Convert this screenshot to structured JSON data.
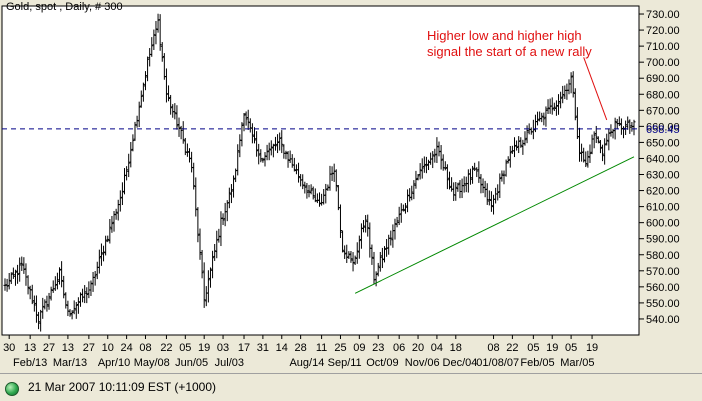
{
  "status": {
    "datetime": "21 Mar 2007 10:11:09  EST (+1000)",
    "led_color": "#2fa84f"
  },
  "chart_data": {
    "type": "ohlc",
    "title": "Gold, spot , Daily, # 300",
    "annotation": {
      "lines": [
        "Higher low and higher high",
        "signal the start of a new rally"
      ],
      "color": "#e01010"
    },
    "ylim": [
      530,
      735
    ],
    "yticks": [
      540,
      550,
      560,
      570,
      580,
      590,
      600,
      610,
      620,
      630,
      640,
      650,
      660,
      670,
      680,
      690,
      700,
      710,
      720,
      730
    ],
    "ytick_labels": [
      "540.00",
      "550.00",
      "560.00",
      "570.00",
      "580.00",
      "590.00",
      "600.00",
      "610.00",
      "620.00",
      "630.00",
      "640.00",
      "650.00",
      "660.00",
      "670.00",
      "680.00",
      "690.00",
      "700.00",
      "710.00",
      "720.00",
      "730.00"
    ],
    "xlim": [
      0,
      300
    ],
    "xticks_top": [
      {
        "x": 2,
        "label": "30"
      },
      {
        "x": 12,
        "label": "13"
      },
      {
        "x": 21,
        "label": "27"
      },
      {
        "x": 30,
        "label": "13"
      },
      {
        "x": 40,
        "label": "27"
      },
      {
        "x": 49,
        "label": "10"
      },
      {
        "x": 58,
        "label": "24"
      },
      {
        "x": 67,
        "label": "08"
      },
      {
        "x": 77,
        "label": "22"
      },
      {
        "x": 86,
        "label": "05"
      },
      {
        "x": 95,
        "label": "19"
      },
      {
        "x": 104,
        "label": "03"
      },
      {
        "x": 114,
        "label": "17"
      },
      {
        "x": 123,
        "label": "31"
      },
      {
        "x": 132,
        "label": "14"
      },
      {
        "x": 141,
        "label": "28"
      },
      {
        "x": 151,
        "label": "11"
      },
      {
        "x": 160,
        "label": "25"
      },
      {
        "x": 169,
        "label": "09"
      },
      {
        "x": 178,
        "label": "23"
      },
      {
        "x": 188,
        "label": "06"
      },
      {
        "x": 197,
        "label": "20"
      },
      {
        "x": 206,
        "label": "04"
      },
      {
        "x": 215,
        "label": "18"
      },
      {
        "x": 233,
        "label": "08"
      },
      {
        "x": 242,
        "label": "22"
      },
      {
        "x": 252,
        "label": "05"
      },
      {
        "x": 261,
        "label": "19"
      },
      {
        "x": 270,
        "label": "05"
      },
      {
        "x": 280,
        "label": "19"
      }
    ],
    "xticks_bottom": [
      {
        "x": 12,
        "label": "Feb/13"
      },
      {
        "x": 31,
        "label": "Mar/13"
      },
      {
        "x": 52,
        "label": "Apr/10"
      },
      {
        "x": 70,
        "label": "May/08"
      },
      {
        "x": 89,
        "label": "Jun/05"
      },
      {
        "x": 107,
        "label": "Jul/03"
      },
      {
        "x": 144,
        "label": "Aug/14"
      },
      {
        "x": 162,
        "label": "Sep/11"
      },
      {
        "x": 180,
        "label": "Oct/09"
      },
      {
        "x": 199,
        "label": "Nov/06"
      },
      {
        "x": 217,
        "label": "Dec/04"
      },
      {
        "x": 235,
        "label": "01/08/07"
      },
      {
        "x": 254,
        "label": "Feb/05"
      },
      {
        "x": 273,
        "label": "Mar/05"
      }
    ],
    "reference_line": {
      "value": 658.45,
      "label": "658.45",
      "style": "dashed",
      "color": "#000088"
    },
    "trendline": {
      "start": {
        "x": 167,
        "y": 556
      },
      "end": {
        "x": 300,
        "y": 641
      },
      "color": "#008800"
    },
    "arrow": {
      "start": {
        "x": 276,
        "y": 703
      },
      "end": {
        "x": 287,
        "y": 664
      },
      "color": "#e01010"
    },
    "swing_points": [
      [
        0,
        560
      ],
      [
        8,
        573
      ],
      [
        16,
        540
      ],
      [
        26,
        568
      ],
      [
        30,
        543
      ],
      [
        41,
        560
      ],
      [
        56,
        620
      ],
      [
        68,
        700
      ],
      [
        73,
        725
      ],
      [
        77,
        680
      ],
      [
        84,
        655
      ],
      [
        89,
        635
      ],
      [
        95,
        552
      ],
      [
        103,
        600
      ],
      [
        109,
        625
      ],
      [
        114,
        670
      ],
      [
        121,
        640
      ],
      [
        131,
        650
      ],
      [
        142,
        625
      ],
      [
        150,
        610
      ],
      [
        157,
        635
      ],
      [
        161,
        585
      ],
      [
        166,
        574
      ],
      [
        172,
        604
      ],
      [
        176,
        566
      ],
      [
        186,
        598
      ],
      [
        197,
        630
      ],
      [
        206,
        645
      ],
      [
        214,
        618
      ],
      [
        224,
        632
      ],
      [
        232,
        610
      ],
      [
        240,
        640
      ],
      [
        249,
        655
      ],
      [
        258,
        668
      ],
      [
        266,
        680
      ],
      [
        270,
        690
      ],
      [
        274,
        645
      ],
      [
        277,
        636
      ],
      [
        281,
        655
      ],
      [
        285,
        645
      ],
      [
        289,
        657
      ],
      [
        290,
        660
      ]
    ],
    "grid": false,
    "bar_color": "#000000"
  }
}
